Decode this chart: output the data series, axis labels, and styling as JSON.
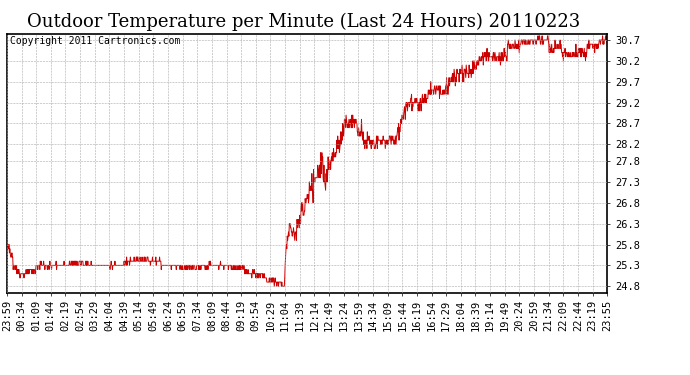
{
  "title": "Outdoor Temperature per Minute (Last 24 Hours) 20110223",
  "copyright": "Copyright 2011 Cartronics.com",
  "line_color": "#cc0000",
  "background_color": "#ffffff",
  "grid_color": "#aaaaaa",
  "yticks": [
    24.8,
    25.3,
    25.8,
    26.3,
    26.8,
    27.3,
    27.8,
    28.2,
    28.7,
    29.2,
    29.7,
    30.2,
    30.7
  ],
  "ylim": [
    24.65,
    30.85
  ],
  "xtick_labels": [
    "23:59",
    "00:34",
    "01:09",
    "01:44",
    "02:19",
    "02:54",
    "03:29",
    "04:04",
    "04:39",
    "05:14",
    "05:49",
    "06:24",
    "06:59",
    "07:34",
    "08:09",
    "08:44",
    "09:19",
    "09:54",
    "10:29",
    "11:04",
    "11:39",
    "12:14",
    "12:49",
    "13:24",
    "13:59",
    "14:34",
    "15:09",
    "15:44",
    "16:19",
    "16:54",
    "17:29",
    "18:04",
    "18:39",
    "19:14",
    "19:49",
    "20:24",
    "20:59",
    "21:34",
    "22:09",
    "22:44",
    "23:19",
    "23:55"
  ],
  "title_fontsize": 13,
  "tick_fontsize": 7.5,
  "copyright_fontsize": 7
}
